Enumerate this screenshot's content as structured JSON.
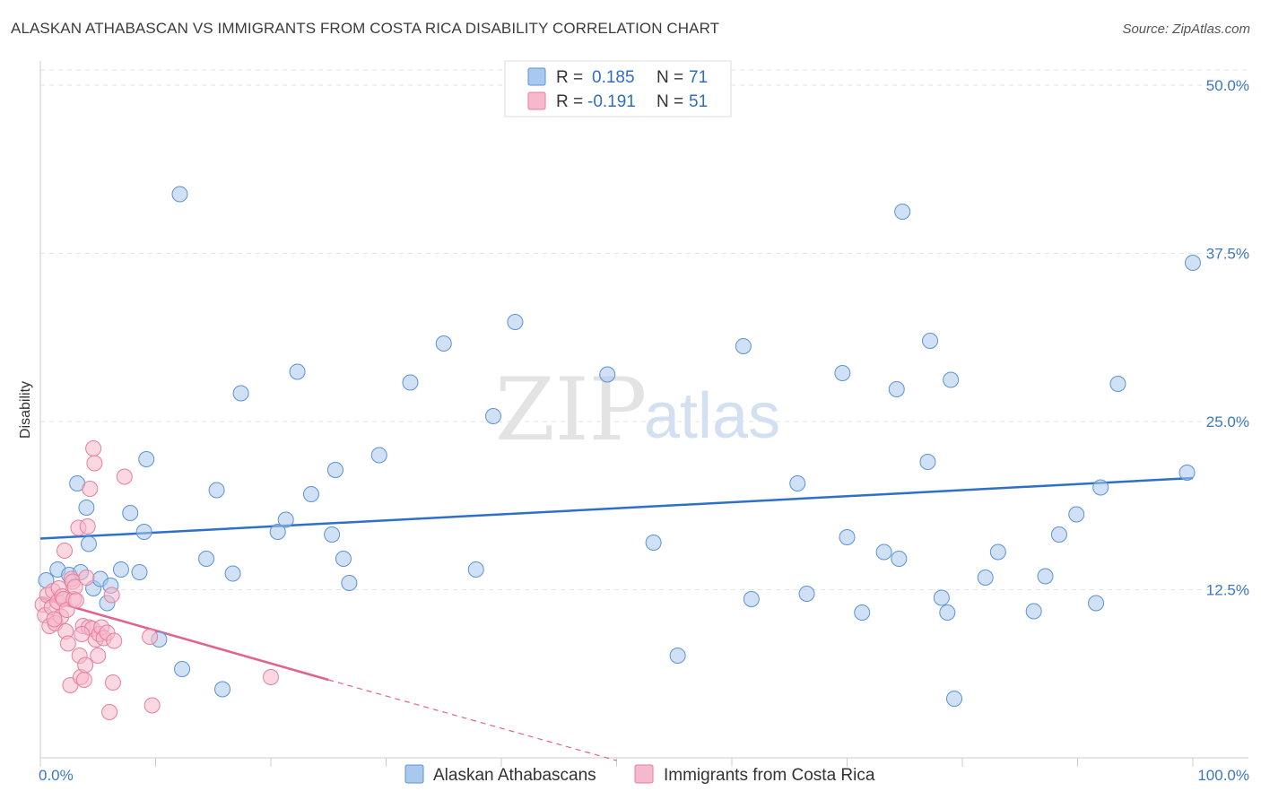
{
  "title": "ALASKAN ATHABASCAN VS IMMIGRANTS FROM COSTA RICA DISABILITY CORRELATION CHART",
  "source": "Source: ZipAtlas.com",
  "watermark": {
    "zip": "ZIP",
    "atlas": "atlas"
  },
  "legend": {
    "rows": [
      {
        "r_label": "R =",
        "r_value": "0.185",
        "n_label": "N =",
        "n_value": "71"
      },
      {
        "r_label": "R =",
        "r_value": "-0.191",
        "n_label": "N =",
        "n_value": "51"
      }
    ]
  },
  "bottom_legend": [
    "Alaskan Athabascans",
    "Immigrants from Costa Rica"
  ],
  "colors": {
    "blue_fill": "#a9c8ee",
    "blue_stroke": "#5b93d4",
    "blue_line": "#2f6fcc",
    "pink_fill": "#f6b8cb",
    "pink_stroke": "#e87ea0",
    "pink_line": "#e2628d",
    "grid": "#e3e3e3",
    "tick_text": "#3b78c3"
  },
  "chart_data": {
    "type": "scatter",
    "title": "ALASKAN ATHABASCAN VS IMMIGRANTS FROM COSTA RICA DISABILITY CORRELATION CHART",
    "xlabel": "",
    "ylabel": "Disability",
    "xlim": [
      0,
      100
    ],
    "ylim": [
      0,
      50
    ],
    "x_tick_labels": [
      "0.0%",
      "100.0%"
    ],
    "y_ticks": [
      12.5,
      25.0,
      37.5,
      50.0
    ],
    "y_tick_labels": [
      "12.5%",
      "25.0%",
      "37.5%",
      "50.0%"
    ],
    "series": [
      {
        "name": "Alaskan Athabascans",
        "R": 0.185,
        "N": 71,
        "trend": {
          "x": [
            0,
            100
          ],
          "y": [
            16.3,
            20.8
          ]
        },
        "points": [
          [
            0.5,
            13.2
          ],
          [
            1.5,
            14.0
          ],
          [
            2.5,
            13.6
          ],
          [
            3.2,
            20.4
          ],
          [
            3.5,
            13.8
          ],
          [
            4.0,
            18.6
          ],
          [
            4.2,
            15.9
          ],
          [
            4.6,
            12.6
          ],
          [
            5.2,
            13.3
          ],
          [
            5.8,
            11.5
          ],
          [
            6.1,
            12.8
          ],
          [
            7.0,
            14.0
          ],
          [
            7.8,
            18.2
          ],
          [
            8.6,
            13.8
          ],
          [
            9.0,
            16.8
          ],
          [
            9.2,
            22.2
          ],
          [
            10.3,
            8.8
          ],
          [
            12.1,
            41.9
          ],
          [
            12.3,
            6.6
          ],
          [
            14.4,
            14.8
          ],
          [
            15.3,
            19.9
          ],
          [
            15.8,
            5.1
          ],
          [
            16.7,
            13.7
          ],
          [
            17.4,
            27.1
          ],
          [
            20.6,
            16.8
          ],
          [
            21.3,
            17.7
          ],
          [
            22.3,
            28.7
          ],
          [
            23.5,
            19.6
          ],
          [
            25.3,
            16.6
          ],
          [
            25.6,
            21.4
          ],
          [
            26.3,
            14.8
          ],
          [
            26.8,
            13.0
          ],
          [
            29.4,
            22.5
          ],
          [
            32.1,
            27.9
          ],
          [
            35.0,
            30.8
          ],
          [
            37.8,
            14.0
          ],
          [
            39.3,
            25.4
          ],
          [
            41.2,
            32.4
          ],
          [
            49.2,
            28.5
          ],
          [
            53.2,
            16.0
          ],
          [
            55.3,
            7.6
          ],
          [
            61.0,
            30.6
          ],
          [
            61.7,
            11.8
          ],
          [
            65.7,
            20.4
          ],
          [
            66.5,
            12.2
          ],
          [
            69.6,
            28.6
          ],
          [
            70.0,
            16.4
          ],
          [
            71.3,
            10.8
          ],
          [
            73.2,
            15.3
          ],
          [
            74.3,
            27.4
          ],
          [
            74.5,
            14.8
          ],
          [
            74.8,
            40.6
          ],
          [
            77.0,
            22.0
          ],
          [
            77.2,
            31.0
          ],
          [
            78.2,
            11.9
          ],
          [
            78.7,
            10.8
          ],
          [
            79.0,
            28.1
          ],
          [
            79.3,
            4.4
          ],
          [
            82.0,
            13.4
          ],
          [
            83.1,
            15.3
          ],
          [
            86.2,
            10.9
          ],
          [
            87.2,
            13.5
          ],
          [
            88.4,
            16.6
          ],
          [
            89.9,
            18.1
          ],
          [
            91.6,
            11.5
          ],
          [
            92.0,
            20.1
          ],
          [
            93.5,
            27.8
          ],
          [
            100.0,
            36.8
          ],
          [
            99.5,
            21.2
          ]
        ]
      },
      {
        "name": "Immigrants from Costa Rica",
        "R": -0.191,
        "N": 51,
        "trend": {
          "x": [
            0,
            25
          ],
          "y": [
            11.9,
            5.8
          ]
        },
        "trend_dashed": {
          "x": [
            25,
            50
          ],
          "y": [
            5.8,
            -0.2
          ]
        },
        "points": [
          [
            0.2,
            11.4
          ],
          [
            0.4,
            10.6
          ],
          [
            0.6,
            12.1
          ],
          [
            0.8,
            9.8
          ],
          [
            1.0,
            11.2
          ],
          [
            1.1,
            12.4
          ],
          [
            1.3,
            10.0
          ],
          [
            1.5,
            11.6
          ],
          [
            1.6,
            12.6
          ],
          [
            1.8,
            10.5
          ],
          [
            1.9,
            12.0
          ],
          [
            2.0,
            11.8
          ],
          [
            2.1,
            15.4
          ],
          [
            2.2,
            9.4
          ],
          [
            2.3,
            11.0
          ],
          [
            2.4,
            8.5
          ],
          [
            2.6,
            5.4
          ],
          [
            2.7,
            13.3
          ],
          [
            2.8,
            13.1
          ],
          [
            2.9,
            11.8
          ],
          [
            3.0,
            12.7
          ],
          [
            3.1,
            11.7
          ],
          [
            3.3,
            17.1
          ],
          [
            3.4,
            7.6
          ],
          [
            3.5,
            6.0
          ],
          [
            3.7,
            9.8
          ],
          [
            3.8,
            5.8
          ],
          [
            3.9,
            6.9
          ],
          [
            4.0,
            13.4
          ],
          [
            4.1,
            17.2
          ],
          [
            4.2,
            9.7
          ],
          [
            4.3,
            20.0
          ],
          [
            4.5,
            9.6
          ],
          [
            4.6,
            23.0
          ],
          [
            4.7,
            21.9
          ],
          [
            4.8,
            8.8
          ],
          [
            5.0,
            7.6
          ],
          [
            5.1,
            9.2
          ],
          [
            5.3,
            9.7
          ],
          [
            5.5,
            8.9
          ],
          [
            5.8,
            9.3
          ],
          [
            6.0,
            3.4
          ],
          [
            6.2,
            12.1
          ],
          [
            6.3,
            5.6
          ],
          [
            6.4,
            8.7
          ],
          [
            7.3,
            20.9
          ],
          [
            9.5,
            9.0
          ],
          [
            9.7,
            3.9
          ],
          [
            20.0,
            6.0
          ],
          [
            1.2,
            10.3
          ],
          [
            3.6,
            9.2
          ]
        ]
      }
    ]
  }
}
